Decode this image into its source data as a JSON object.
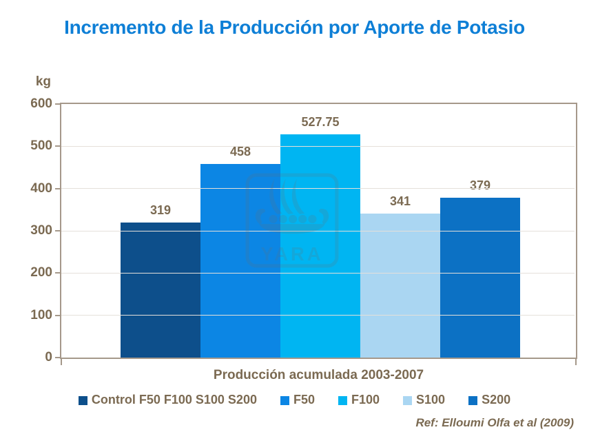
{
  "title": "Incremento de la Producción por Aporte de Potasio",
  "watermark": {
    "text": "YARA"
  },
  "footer": {
    "ref": "Ref: Elloumi Olfa et al (2009)"
  },
  "colors": {
    "title_blue": "#0E7FD6",
    "text_brown": "#7B6A52",
    "axis_border": "#A5988A",
    "gridline": "#E5E0DA"
  },
  "chart_data": {
    "type": "bar",
    "categories": [
      "Control F50 F100 S100 S200",
      "F50",
      "F100",
      "S100",
      "S200"
    ],
    "values": [
      319,
      458,
      527.75,
      341,
      379
    ],
    "value_labels": [
      "319",
      "458",
      "527.75",
      "341",
      "379"
    ],
    "bar_colors": [
      "#0D4F8B",
      "#0C86E4",
      "#00B5F2",
      "#AAD6F2",
      "#0C71C4"
    ],
    "title": "Incremento de la Producción por Aporte de Potasio",
    "xlabel": "Producción acumulada 2003-2007",
    "ylabel": "kg",
    "ylim": [
      0,
      600
    ],
    "yticks": [
      0,
      100,
      200,
      300,
      400,
      500,
      600
    ],
    "grid": true,
    "legend_position": "bottom",
    "legend": [
      {
        "label": "Control F50 F100 S100 S200",
        "color": "#0D4F8B"
      },
      {
        "label": "F50",
        "color": "#0C86E4"
      },
      {
        "label": "F100",
        "color": "#00B5F2"
      },
      {
        "label": "S100",
        "color": "#AAD6F2"
      },
      {
        "label": "S200",
        "color": "#0C71C4"
      }
    ]
  }
}
